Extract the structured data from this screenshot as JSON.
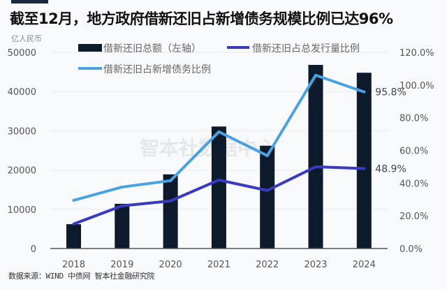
{
  "header": {
    "title": "截至12月，地方政府借新还旧占新增债务规模比例已达96%",
    "unit": "亿人民币"
  },
  "footer": {
    "source": "数据来源：WIND 中债网 智本社金融研究院"
  },
  "watermark": "智本社数据中心",
  "colors": {
    "bar": "#0c1a2b",
    "line_total_ratio": "#3a3abf",
    "line_new_debt_ratio": "#4aa3e0",
    "accent_bar": "#1a2a3c"
  },
  "chart_data": {
    "type": "bar",
    "title": "截至12月，地方政府借新还旧占新增债务规模比例已达96%",
    "categories": [
      "2018",
      "2019",
      "2020",
      "2021",
      "2022",
      "2023",
      "2024"
    ],
    "ylabel": "亿人民币",
    "ylim": [
      0,
      50000
    ],
    "yticks": [
      "0",
      "10000",
      "20000",
      "30000",
      "40000",
      "50000"
    ],
    "y2lim": [
      0,
      120
    ],
    "y2ticks": [
      "0.0%",
      "20.0%",
      "40.0%",
      "60.0%",
      "80.0%",
      "100.0%",
      "120.0%"
    ],
    "grid": true,
    "legend_position": "top",
    "series": [
      {
        "name": "借新还旧总额（左轴）",
        "type": "bar",
        "axis": "left",
        "values": [
          6200,
          11400,
          18900,
          31100,
          26200,
          46800,
          44800
        ]
      },
      {
        "name": "借新还旧占总发行量比例",
        "type": "line",
        "axis": "right",
        "values": [
          15.0,
          26.1,
          29.1,
          41.9,
          35.5,
          50.0,
          48.9
        ]
      },
      {
        "name": "借新还旧占新增债务比例",
        "type": "line",
        "axis": "right",
        "values": [
          29.5,
          37.6,
          41.5,
          71.4,
          56.8,
          106.0,
          95.8
        ]
      }
    ],
    "annotations": [
      {
        "series": "借新还旧占新增债务比例",
        "category": "2024",
        "text": "95.8%"
      },
      {
        "series": "借新还旧占总发行量比例",
        "category": "2024",
        "text": "48.9%"
      }
    ]
  }
}
